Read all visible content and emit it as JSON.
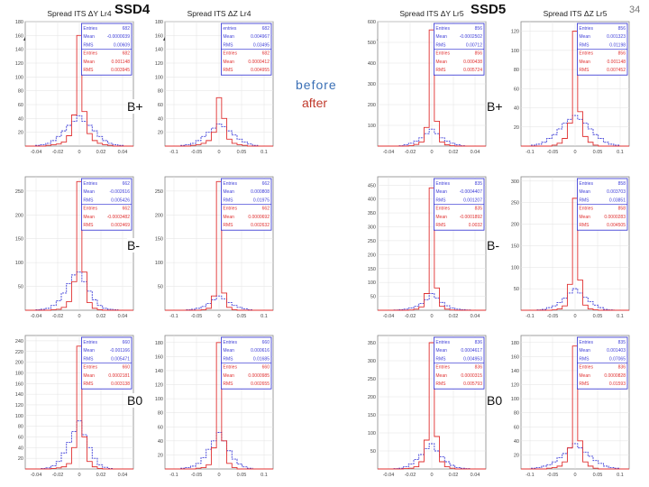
{
  "page_number": "34",
  "groups": [
    {
      "label": "SSD4",
      "left_delta": "ΔY",
      "right_delta": "ΔZ"
    },
    {
      "label": "SSD5",
      "left_delta": "ΔY",
      "right_delta": "ΔZ"
    }
  ],
  "rows": [
    "B+",
    "B-",
    "B0"
  ],
  "legend": {
    "before": "before",
    "after": "after"
  },
  "colors": {
    "before": "#4040d8",
    "after": "#e03030",
    "stats_border": "#2a2ad0",
    "frame": "#888888"
  },
  "chart_data": [
    {
      "type": "line",
      "title": "Spread ITS ΔY Lr4",
      "yticks": [
        "180",
        "160",
        "140",
        "120",
        "100",
        "80",
        "60",
        "40",
        "20"
      ],
      "xticks": [
        "-0.04",
        "-0.02",
        "0",
        "0.02",
        "0.04"
      ],
      "xlim": [
        -0.05,
        0.05
      ],
      "ylim": [
        0,
        180
      ],
      "stats": [
        [
          "Entries",
          "682"
        ],
        [
          "Mean",
          "-0.0000039"
        ],
        [
          "RMS",
          "0.00609"
        ],
        [
          "Entries",
          "682"
        ],
        [
          "Mean",
          "0.001148"
        ],
        [
          "RMS",
          "0.003945"
        ]
      ],
      "series": [
        {
          "values": [
            0,
            0,
            1,
            2,
            4,
            8,
            14,
            22,
            30,
            36,
            44,
            36,
            30,
            22,
            14,
            8,
            4,
            2,
            1,
            0,
            0
          ]
        },
        {
          "values": [
            0,
            0,
            0,
            0,
            1,
            2,
            3,
            6,
            15,
            45,
            160,
            50,
            18,
            8,
            4,
            2,
            1,
            0,
            0,
            0,
            0
          ]
        }
      ]
    },
    {
      "type": "line",
      "title": "Spread ITS ΔZ Lr4",
      "yticks": [
        "180",
        "160",
        "140",
        "120",
        "100",
        "80",
        "60",
        "40",
        "20"
      ],
      "xticks": [
        "-0.1",
        "-0.05",
        "0",
        "0.05",
        "0.1"
      ],
      "xlim": [
        -0.12,
        0.12
      ],
      "ylim": [
        0,
        180
      ],
      "stats": [
        [
          "entries",
          "682"
        ],
        [
          "Mean",
          "0.004967"
        ],
        [
          "RMS",
          "0.03495"
        ],
        [
          "Entries",
          "682"
        ],
        [
          "Mean",
          "0.0000412"
        ],
        [
          "RMS",
          "0.004955"
        ]
      ],
      "series": [
        {
          "values": [
            0,
            0,
            0,
            1,
            2,
            4,
            8,
            14,
            20,
            26,
            32,
            28,
            22,
            16,
            10,
            6,
            3,
            1,
            0,
            0,
            0
          ]
        },
        {
          "values": [
            0,
            0,
            0,
            0,
            0,
            1,
            2,
            4,
            8,
            20,
            70,
            40,
            10,
            4,
            2,
            1,
            0,
            0,
            0,
            0,
            0
          ]
        }
      ]
    },
    {
      "type": "line",
      "title": "Spread ITS ΔY Lr5",
      "yticks": [
        "600",
        "500",
        "400",
        "300",
        "200",
        "100"
      ],
      "xticks": [
        "-0.04",
        "-0.02",
        "0",
        "0.02",
        "0.04"
      ],
      "xlim": [
        -0.05,
        0.05
      ],
      "ylim": [
        0,
        600
      ],
      "stats": [
        [
          "Entries",
          "856"
        ],
        [
          "Mean",
          "-0.0002502"
        ],
        [
          "RMS",
          "0.00712"
        ],
        [
          "Entries",
          "856"
        ],
        [
          "Mean",
          "0.000438"
        ],
        [
          "RMS",
          "0.005724"
        ]
      ],
      "series": [
        {
          "values": [
            0,
            0,
            0,
            0,
            2,
            6,
            14,
            24,
            40,
            60,
            82,
            60,
            40,
            24,
            14,
            6,
            2,
            0,
            0,
            0,
            0
          ]
        },
        {
          "values": [
            0,
            0,
            0,
            0,
            0,
            0,
            2,
            8,
            20,
            90,
            560,
            120,
            20,
            6,
            2,
            0,
            0,
            0,
            0,
            0,
            0
          ]
        }
      ]
    },
    {
      "type": "line",
      "title": "Spread ITS ΔZ Lr5",
      "yticks": [
        "120",
        "100",
        "80",
        "60",
        "40",
        "20"
      ],
      "xticks": [
        "-0.1",
        "-0.05",
        "0",
        "0.05",
        "0.1"
      ],
      "xlim": [
        -0.12,
        0.12
      ],
      "ylim": [
        0,
        130
      ],
      "stats": [
        [
          "Entries",
          "856"
        ],
        [
          "Mean",
          "0.001323"
        ],
        [
          "RMS",
          "0.01198"
        ],
        [
          "Entries",
          "856"
        ],
        [
          "Mean",
          "0.001148"
        ],
        [
          "RMS",
          "0.007452"
        ]
      ],
      "series": [
        {
          "values": [
            0,
            0,
            1,
            2,
            4,
            8,
            12,
            18,
            24,
            28,
            32,
            28,
            24,
            18,
            12,
            8,
            4,
            2,
            1,
            0,
            0
          ]
        },
        {
          "values": [
            0,
            0,
            0,
            0,
            0,
            0,
            1,
            3,
            8,
            24,
            120,
            36,
            10,
            4,
            1,
            0,
            0,
            0,
            0,
            0,
            0
          ]
        }
      ]
    },
    {
      "type": "line",
      "title": "",
      "yticks": [
        "250",
        "200",
        "150",
        "100",
        "50"
      ],
      "xticks": [
        "-0.04",
        "-0.02",
        "0",
        "0.02",
        "0.04"
      ],
      "xlim": [
        -0.05,
        0.05
      ],
      "ylim": [
        0,
        280
      ],
      "stats": [
        [
          "Entries",
          "662"
        ],
        [
          "Mean",
          "-0.002616"
        ],
        [
          "RMS",
          "0.005426"
        ],
        [
          "Entries",
          "662"
        ],
        [
          "Mean",
          "-0.0003482"
        ],
        [
          "RMS",
          "0.002469"
        ]
      ],
      "series": [
        {
          "values": [
            0,
            0,
            1,
            2,
            4,
            10,
            20,
            36,
            56,
            74,
            80,
            60,
            40,
            22,
            10,
            4,
            2,
            1,
            0,
            0,
            0
          ]
        },
        {
          "values": [
            0,
            0,
            0,
            0,
            0,
            1,
            2,
            6,
            18,
            60,
            270,
            80,
            16,
            4,
            1,
            0,
            0,
            0,
            0,
            0,
            0
          ]
        }
      ]
    },
    {
      "type": "line",
      "title": "",
      "yticks": [
        "250",
        "200",
        "150",
        "100",
        "50"
      ],
      "xticks": [
        "-0.1",
        "-0.05",
        "0",
        "0.05",
        "0.1"
      ],
      "xlim": [
        -0.12,
        0.12
      ],
      "ylim": [
        0,
        280
      ],
      "stats": [
        [
          "Entries",
          "662"
        ],
        [
          "Mean",
          "0.000808"
        ],
        [
          "RMS",
          "0.01975"
        ],
        [
          "Entries",
          "662"
        ],
        [
          "Mean",
          "0.0000692"
        ],
        [
          "RMS",
          "0.002632"
        ]
      ],
      "series": [
        {
          "values": [
            0,
            0,
            0,
            0,
            1,
            2,
            4,
            8,
            14,
            22,
            30,
            24,
            16,
            10,
            6,
            3,
            1,
            0,
            0,
            0,
            0
          ]
        },
        {
          "values": [
            0,
            0,
            0,
            0,
            0,
            0,
            0,
            1,
            4,
            30,
            270,
            36,
            6,
            1,
            0,
            0,
            0,
            0,
            0,
            0,
            0
          ]
        }
      ]
    },
    {
      "type": "line",
      "title": "",
      "yticks": [
        "450",
        "400",
        "350",
        "300",
        "250",
        "200",
        "150",
        "100",
        "50"
      ],
      "xticks": [
        "-0.04",
        "-0.02",
        "0",
        "0.02",
        "0.04"
      ],
      "xlim": [
        -0.05,
        0.05
      ],
      "ylim": [
        0,
        480
      ],
      "stats": [
        [
          "Entries",
          "835"
        ],
        [
          "Mean",
          "-0.0004407"
        ],
        [
          "RMS",
          "0.001207"
        ],
        [
          "Entries",
          "835"
        ],
        [
          "Mean",
          "-0.0001892"
        ],
        [
          "RMS",
          "0.0032"
        ]
      ],
      "series": [
        {
          "values": [
            0,
            0,
            0,
            1,
            2,
            4,
            8,
            14,
            24,
            38,
            60,
            44,
            28,
            16,
            8,
            4,
            2,
            1,
            0,
            0,
            0
          ]
        },
        {
          "values": [
            0,
            0,
            0,
            0,
            0,
            0,
            1,
            4,
            12,
            60,
            440,
            80,
            14,
            4,
            1,
            0,
            0,
            0,
            0,
            0,
            0
          ]
        }
      ]
    },
    {
      "type": "line",
      "title": "",
      "yticks": [
        "300",
        "250",
        "200",
        "150",
        "100",
        "50"
      ],
      "xticks": [
        "-0.1",
        "-0.05",
        "0",
        "0.05",
        "0.1"
      ],
      "xlim": [
        -0.12,
        0.12
      ],
      "ylim": [
        0,
        310
      ],
      "stats": [
        [
          "Entries",
          "858"
        ],
        [
          "Mean",
          "0.003703"
        ],
        [
          "RMS",
          "0.03851"
        ],
        [
          "Entries",
          "858"
        ],
        [
          "Mean",
          "0.0000283"
        ],
        [
          "RMS",
          "0.004505"
        ]
      ],
      "series": [
        {
          "values": [
            0,
            0,
            0,
            1,
            2,
            6,
            10,
            18,
            28,
            40,
            50,
            40,
            30,
            20,
            12,
            6,
            2,
            1,
            0,
            0,
            0
          ]
        },
        {
          "values": [
            0,
            0,
            0,
            0,
            0,
            0,
            1,
            3,
            10,
            60,
            260,
            70,
            12,
            3,
            1,
            0,
            0,
            0,
            0,
            0,
            0
          ]
        }
      ]
    },
    {
      "type": "line",
      "title": "",
      "yticks": [
        "240",
        "220",
        "200",
        "180",
        "160",
        "140",
        "120",
        "100",
        "80",
        "60",
        "40",
        "20"
      ],
      "xticks": [
        "-0.04",
        "-0.02",
        "0",
        "0.02",
        "0.04"
      ],
      "xlim": [
        -0.05,
        0.05
      ],
      "ylim": [
        0,
        250
      ],
      "stats": [
        [
          "Entries",
          "660"
        ],
        [
          "Mean",
          "-0.001166"
        ],
        [
          "RMS",
          "0.005471"
        ],
        [
          "Entries",
          "660"
        ],
        [
          "Mean",
          "0.0002181"
        ],
        [
          "RMS",
          "0.003138"
        ]
      ],
      "series": [
        {
          "values": [
            0,
            0,
            0,
            1,
            2,
            6,
            14,
            30,
            50,
            70,
            90,
            64,
            40,
            20,
            8,
            3,
            1,
            0,
            0,
            0,
            0
          ]
        },
        {
          "values": [
            0,
            0,
            0,
            0,
            0,
            1,
            2,
            4,
            10,
            40,
            230,
            60,
            14,
            4,
            1,
            0,
            0,
            0,
            0,
            0,
            0
          ]
        }
      ]
    },
    {
      "type": "line",
      "title": "",
      "yticks": [
        "180",
        "160",
        "140",
        "120",
        "100",
        "80",
        "60",
        "40",
        "20"
      ],
      "xticks": [
        "-0.1",
        "-0.05",
        "0",
        "0.05",
        "0.1"
      ],
      "xlim": [
        -0.12,
        0.12
      ],
      "ylim": [
        0,
        190
      ],
      "stats": [
        [
          "Entries",
          "660"
        ],
        [
          "Mean",
          "0.000616"
        ],
        [
          "RMS",
          "0.01685"
        ],
        [
          "Entries",
          "660"
        ],
        [
          "Mean",
          "0.0000985"
        ],
        [
          "RMS",
          "0.002655"
        ]
      ],
      "series": [
        {
          "values": [
            0,
            0,
            0,
            1,
            2,
            4,
            8,
            16,
            28,
            40,
            52,
            40,
            26,
            14,
            7,
            3,
            1,
            0,
            0,
            0,
            0
          ]
        },
        {
          "values": [
            0,
            0,
            0,
            0,
            0,
            0,
            1,
            2,
            6,
            30,
            180,
            40,
            8,
            2,
            0,
            0,
            0,
            0,
            0,
            0,
            0
          ]
        }
      ]
    },
    {
      "type": "line",
      "title": "",
      "yticks": [
        "350",
        "300",
        "250",
        "200",
        "150",
        "100",
        "50"
      ],
      "xticks": [
        "-0.04",
        "-0.02",
        "0",
        "0.02",
        "0.04"
      ],
      "xlim": [
        -0.05,
        0.05
      ],
      "ylim": [
        0,
        370
      ],
      "stats": [
        [
          "Entries",
          "836"
        ],
        [
          "Mean",
          "0.0004617"
        ],
        [
          "RMS",
          "0.004953"
        ],
        [
          "Entries",
          "836"
        ],
        [
          "Mean",
          "0.0000315"
        ],
        [
          "RMS",
          "0.005793"
        ]
      ],
      "series": [
        {
          "values": [
            0,
            0,
            0,
            1,
            2,
            6,
            14,
            26,
            40,
            56,
            70,
            50,
            34,
            20,
            10,
            4,
            2,
            1,
            0,
            0,
            0
          ]
        },
        {
          "values": [
            0,
            0,
            0,
            0,
            0,
            1,
            2,
            6,
            20,
            80,
            350,
            90,
            20,
            6,
            2,
            0,
            0,
            0,
            0,
            0,
            0
          ]
        }
      ]
    },
    {
      "type": "line",
      "title": "",
      "yticks": [
        "180",
        "160",
        "140",
        "120",
        "100",
        "80",
        "60",
        "40",
        "20"
      ],
      "xticks": [
        "-0.1",
        "-0.05",
        "0",
        "0.05",
        "0.1"
      ],
      "xlim": [
        -0.12,
        0.12
      ],
      "ylim": [
        0,
        190
      ],
      "stats": [
        [
          "Entries",
          "835"
        ],
        [
          "Mean",
          "0.001403"
        ],
        [
          "RMS",
          "0.07065"
        ],
        [
          "Entries",
          "836"
        ],
        [
          "Mean",
          "0.0000828"
        ],
        [
          "RMS",
          "0.01593"
        ]
      ],
      "series": [
        {
          "values": [
            0,
            0,
            1,
            2,
            4,
            6,
            10,
            16,
            22,
            30,
            36,
            30,
            24,
            18,
            12,
            8,
            4,
            2,
            1,
            0,
            0
          ]
        },
        {
          "values": [
            0,
            0,
            0,
            0,
            0,
            1,
            2,
            4,
            10,
            30,
            175,
            40,
            10,
            4,
            1,
            0,
            0,
            0,
            0,
            0,
            0
          ]
        }
      ]
    }
  ]
}
